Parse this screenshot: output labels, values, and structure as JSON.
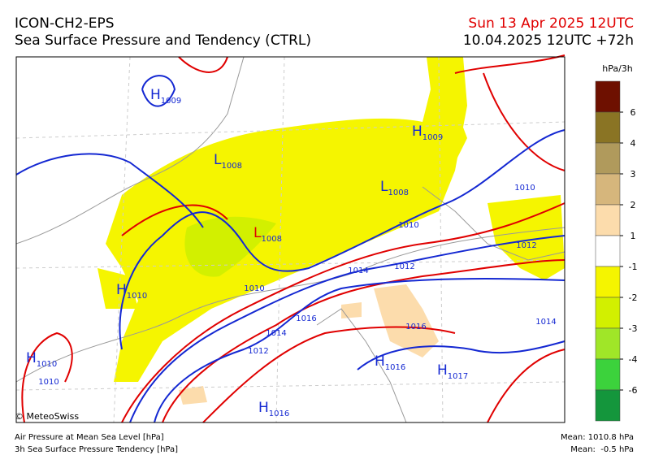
{
  "header": {
    "model": "ICON-CH2-EPS",
    "product": "Sea Surface Pressure and Tendency (CTRL)",
    "valid": "Sun 13 Apr 2025 12UTC",
    "run": "10.04.2025 12UTC +72h"
  },
  "colorbar": {
    "unit": "hPa/3h",
    "ticks": [
      6,
      4,
      3,
      2,
      1,
      -1,
      -2,
      -3,
      -4,
      -6
    ],
    "colors": [
      "#6e1000",
      "#8a7424",
      "#b09a5c",
      "#d6b67c",
      "#fcdcac",
      "#ffffff",
      "#f5f500",
      "#d2f000",
      "#a0e628",
      "#3cd23c",
      "#14963c"
    ]
  },
  "map": {
    "centers": [
      {
        "letter": "H",
        "value": "1009"
      },
      {
        "letter": "L",
        "value": "1008"
      },
      {
        "letter": "H",
        "value": "1009"
      },
      {
        "letter": "L",
        "value": "1008"
      },
      {
        "letter": "L",
        "value": "1008"
      },
      {
        "letter": "H",
        "value": "1010"
      },
      {
        "letter": "H",
        "value": "1010"
      },
      {
        "letter": "H",
        "value": "1016"
      },
      {
        "letter": "H",
        "value": "1017"
      },
      {
        "letter": "H",
        "value": "1016"
      }
    ],
    "contour_labels": [
      "1010",
      "1010",
      "1010",
      "1012",
      "1014",
      "1016",
      "1014",
      "1012",
      "1016",
      "1010",
      "1012",
      "1014"
    ]
  },
  "footer": {
    "credit": "© MeteoSwiss",
    "legend": [
      "Air Pressure at Mean Sea Level [hPa]",
      "3h Sea Surface Pressure Tendency [hPa]"
    ],
    "stats": [
      "Mean: 1010.8 hPa",
      "Mean:  -0.5 hPa"
    ]
  }
}
